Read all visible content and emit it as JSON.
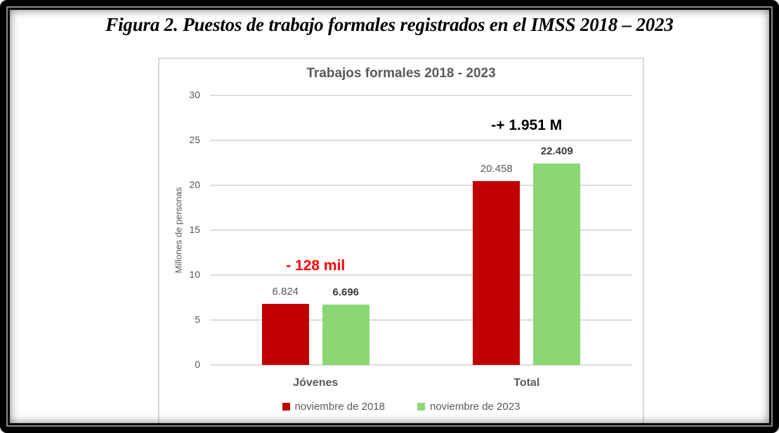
{
  "figure": {
    "caption": "Figura 2. Puestos de trabajo formales registrados en el IMSS 2018 – 2023"
  },
  "chart_data": {
    "type": "bar",
    "title": "Trabajos formales 2018 - 2023",
    "ylabel": "Millones de personas",
    "ylim": [
      0,
      30
    ],
    "yticks": [
      0,
      5,
      10,
      15,
      20,
      25,
      30
    ],
    "grid": true,
    "legend_position": "bottom",
    "categories": [
      "Jóvenes",
      "Total"
    ],
    "series": [
      {
        "name": "noviembre de 2018",
        "color": "#C00000",
        "values": [
          6.824,
          20.458
        ],
        "value_labels": [
          "6.824",
          "20.458"
        ],
        "label_color": "#595959",
        "label_bold": false
      },
      {
        "name": "noviembre de 2023",
        "color": "#8BD873",
        "values": [
          6.696,
          22.409
        ],
        "value_labels": [
          "6.696",
          "22.409"
        ],
        "label_color": "#3A3A3A",
        "label_bold": true
      }
    ],
    "annotations": [
      {
        "text": "- 128 mil",
        "color": "#FF0000",
        "category_index": 0
      },
      {
        "text": "-+ 1.951 M",
        "color": "#000000",
        "category_index": 1
      }
    ],
    "colors": {
      "gridline": "#DCDCDC",
      "axis_text": "#595959",
      "panel_border": "#D9D9D9"
    }
  }
}
